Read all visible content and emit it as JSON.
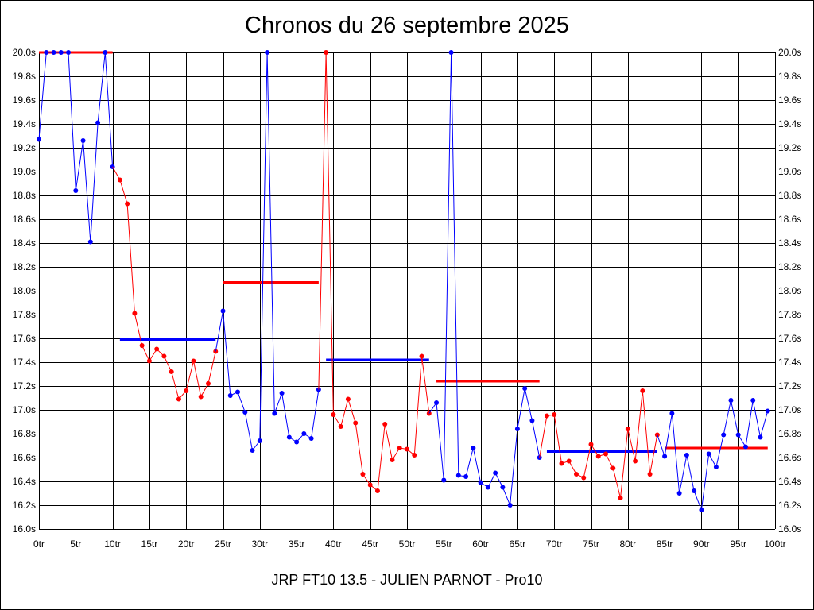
{
  "chart_data": {
    "type": "line",
    "title": "Chronos du 26 septembre 2025",
    "footer": "JRP FT10 13.5 - JULIEN PARNOT - Pro10",
    "xlim": [
      0,
      100
    ],
    "ylim": [
      16.0,
      20.0
    ],
    "grid": true,
    "x_ticks": [
      "0tr",
      "5tr",
      "10tr",
      "15tr",
      "20tr",
      "25tr",
      "30tr",
      "35tr",
      "40tr",
      "45tr",
      "50tr",
      "55tr",
      "60tr",
      "65tr",
      "70tr",
      "75tr",
      "80tr",
      "85tr",
      "90tr",
      "95tr",
      "100tr"
    ],
    "y_ticks": [
      "16.0s",
      "16.2s",
      "16.4s",
      "16.6s",
      "16.8s",
      "17.0s",
      "17.2s",
      "17.4s",
      "17.6s",
      "17.8s",
      "18.0s",
      "18.2s",
      "18.4s",
      "18.6s",
      "18.8s",
      "19.0s",
      "19.2s",
      "19.4s",
      "19.6s",
      "19.8s",
      "20.0s"
    ],
    "colors": {
      "blue": "#0000ff",
      "red": "#ff0000",
      "grid": "#000000"
    },
    "segments": [
      {
        "color": "#0000ff",
        "x": [
          0,
          1,
          2,
          3,
          4,
          5,
          6,
          7,
          8,
          9,
          10
        ],
        "y": [
          19.27,
          20.0,
          20.0,
          20.0,
          20.0,
          18.84,
          19.26,
          18.41,
          19.41,
          20.0,
          19.04
        ]
      },
      {
        "color": "#ff0000",
        "x": [
          11,
          12,
          13,
          14,
          15,
          16,
          17,
          18,
          19,
          20,
          21,
          22,
          23,
          24
        ],
        "y": [
          18.93,
          18.73,
          17.81,
          17.54,
          17.41,
          17.51,
          17.45,
          17.32,
          17.09,
          17.16,
          17.41,
          17.11,
          17.22,
          17.49
        ]
      },
      {
        "color": "#0000ff",
        "x": [
          25,
          26,
          27,
          28,
          29,
          30,
          31,
          32,
          33,
          34,
          35,
          36,
          37,
          38
        ],
        "y": [
          17.83,
          17.12,
          17.15,
          16.98,
          16.66,
          16.74,
          20.0,
          16.97,
          17.14,
          16.77,
          16.73,
          16.8,
          16.76,
          17.17
        ]
      },
      {
        "color": "#ff0000",
        "x": [
          39,
          40,
          41,
          42,
          43,
          44,
          45,
          46,
          47,
          48,
          49,
          50,
          51,
          52,
          53
        ],
        "y": [
          20.0,
          16.96,
          16.86,
          17.09,
          16.89,
          16.46,
          16.37,
          16.32,
          16.88,
          16.58,
          16.68,
          16.67,
          16.62,
          17.45,
          16.97
        ]
      },
      {
        "color": "#0000ff",
        "x": [
          54,
          55,
          56,
          57,
          58,
          59,
          60,
          61,
          62,
          63,
          64,
          65,
          66,
          67,
          68
        ],
        "y": [
          17.06,
          16.41,
          20.0,
          16.45,
          16.44,
          16.68,
          16.39,
          16.35,
          16.47,
          16.35,
          16.2,
          16.84,
          17.18,
          16.91,
          16.6
        ]
      },
      {
        "color": "#ff0000",
        "x": [
          69,
          70,
          71,
          72,
          73,
          74,
          75,
          76,
          77,
          78,
          79,
          80,
          81,
          82,
          83,
          84
        ],
        "y": [
          16.95,
          16.96,
          16.55,
          16.57,
          16.46,
          16.43,
          16.71,
          16.61,
          16.63,
          16.51,
          16.26,
          16.84,
          16.57,
          17.16,
          16.46,
          16.79
        ]
      },
      {
        "color": "#0000ff",
        "x": [
          85,
          86,
          87,
          88,
          89,
          90,
          91,
          92,
          93,
          94,
          95,
          96,
          97,
          98,
          99
        ],
        "y": [
          16.61,
          16.97,
          16.3,
          16.62,
          16.32,
          16.16,
          16.63,
          16.52,
          16.79,
          17.08,
          16.79,
          16.69,
          17.08,
          16.77,
          16.99
        ]
      }
    ],
    "averages": [
      {
        "color": "#ff0000",
        "x": [
          0,
          10
        ],
        "y": 20.0
      },
      {
        "color": "#0000ff",
        "x": [
          11,
          24
        ],
        "y": 17.59
      },
      {
        "color": "#ff0000",
        "x": [
          25,
          38
        ],
        "y": 18.07
      },
      {
        "color": "#0000ff",
        "x": [
          39,
          53
        ],
        "y": 17.42
      },
      {
        "color": "#ff0000",
        "x": [
          54,
          68
        ],
        "y": 17.24
      },
      {
        "color": "#0000ff",
        "x": [
          69,
          84
        ],
        "y": 16.65
      },
      {
        "color": "#ff0000",
        "x": [
          85,
          99
        ],
        "y": 16.68
      }
    ]
  }
}
